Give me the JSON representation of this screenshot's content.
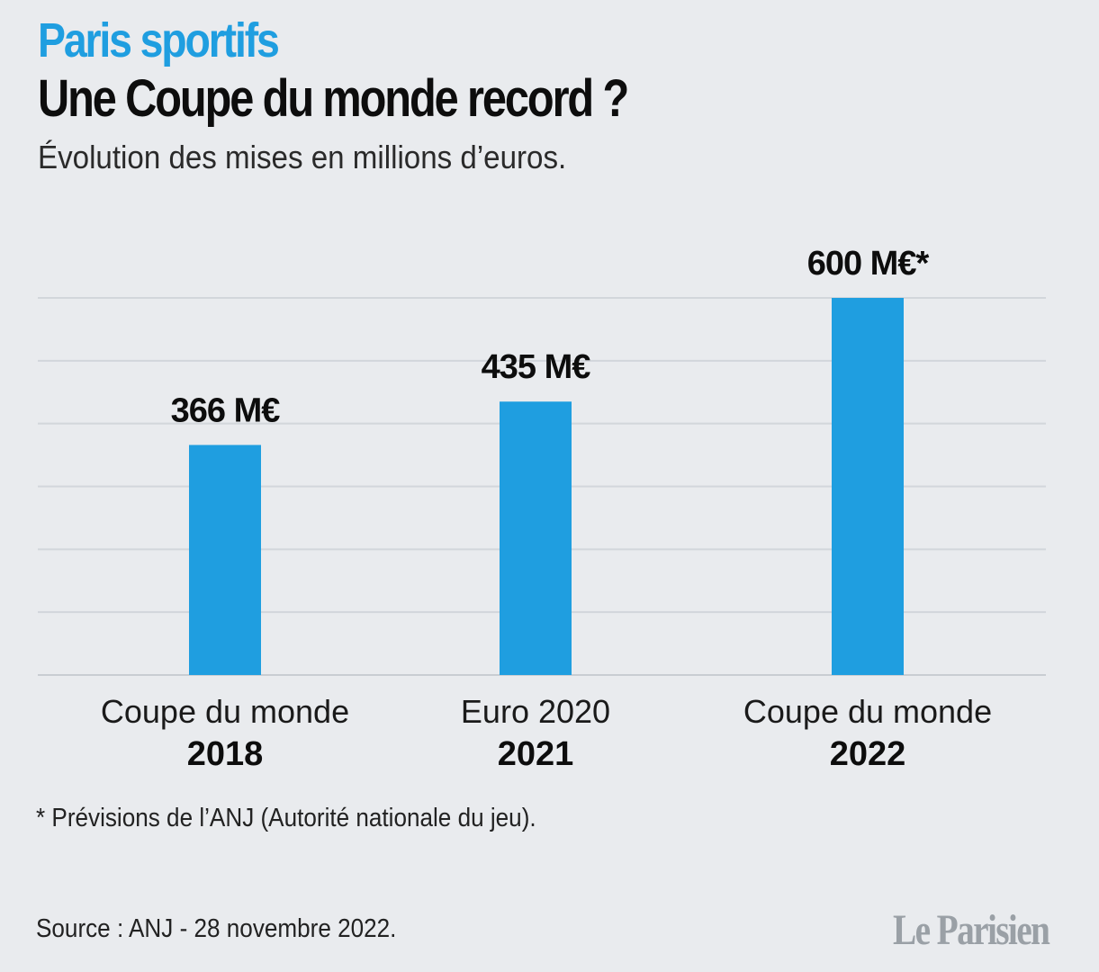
{
  "header": {
    "kicker": "Paris sportifs",
    "title": "Une Coupe du monde record ?",
    "subtitle": "Évolution des mises en millions d’euros."
  },
  "chart_data": {
    "type": "bar",
    "categories": [
      {
        "line1": "Coupe du monde",
        "line2": "2018"
      },
      {
        "line1": "Euro 2020",
        "line2": "2021"
      },
      {
        "line1": "Coupe du monde",
        "line2": "2022"
      }
    ],
    "values": [
      366,
      435,
      600
    ],
    "data_labels": [
      "366 M€",
      "435 M€",
      "600 M€*"
    ],
    "ylim": [
      0,
      600
    ],
    "grid": true,
    "bar_color": "#1f9ee0"
  },
  "footnote": "* Prévisions de l’ANJ (Autorité nationale du jeu).",
  "source": "Source : ANJ - 28 novembre 2022.",
  "logo": "Le Parisien",
  "colors": {
    "background": "#e9ebee",
    "accent": "#1f9ee0",
    "gridline": "#d2d6db"
  }
}
